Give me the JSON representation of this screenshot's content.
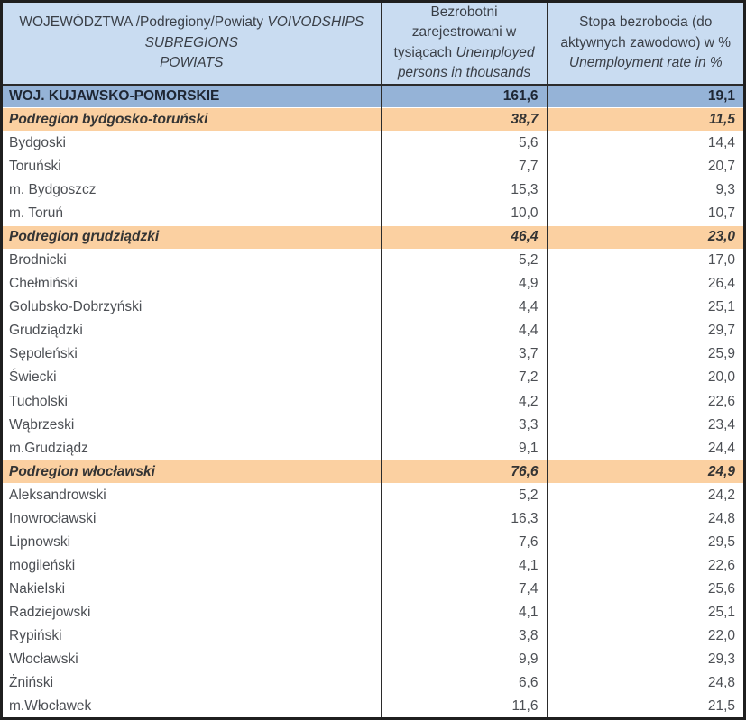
{
  "chart_data": {
    "type": "table",
    "title": "Unemployment by voivodship, subregion and powiat (Kujawsko-Pomorskie)",
    "columns": [
      "WOJEWÓDZTWA /Podregiony/Powiaty VOIVODSHIPS SUBREGIONS POWIATS",
      "Bezrobotni zarejestrowani w tysiącach Unemployed persons in thousands",
      "Stopa bezrobocia (do aktywnych zawodowo) w % Unemployment rate in %"
    ],
    "rows": [
      {
        "name": "WOJ. KUJAWSKO-POMORSKIE",
        "unemployed_thousands": "161,6",
        "rate_percent": "19,1",
        "level": "voivodship"
      },
      {
        "name": "Podregion bydgosko-toruński",
        "unemployed_thousands": "38,7",
        "rate_percent": "11,5",
        "level": "subregion"
      },
      {
        "name": "Bydgoski",
        "unemployed_thousands": "5,6",
        "rate_percent": "14,4",
        "level": "powiat"
      },
      {
        "name": "Toruński",
        "unemployed_thousands": "7,7",
        "rate_percent": "20,7",
        "level": "powiat"
      },
      {
        "name": "m. Bydgoszcz",
        "unemployed_thousands": "15,3",
        "rate_percent": "9,3",
        "level": "powiat"
      },
      {
        "name": "m. Toruń",
        "unemployed_thousands": "10,0",
        "rate_percent": "10,7",
        "level": "powiat"
      },
      {
        "name": "Podregion grudziądzki",
        "unemployed_thousands": "46,4",
        "rate_percent": "23,0",
        "level": "subregion"
      },
      {
        "name": "Brodnicki",
        "unemployed_thousands": "5,2",
        "rate_percent": "17,0",
        "level": "powiat"
      },
      {
        "name": "Chełmiński",
        "unemployed_thousands": "4,9",
        "rate_percent": "26,4",
        "level": "powiat"
      },
      {
        "name": "Golubsko-Dobrzyński",
        "unemployed_thousands": "4,4",
        "rate_percent": "25,1",
        "level": "powiat"
      },
      {
        "name": "Grudziądzki",
        "unemployed_thousands": "4,4",
        "rate_percent": "29,7",
        "level": "powiat"
      },
      {
        "name": "Sępoleński",
        "unemployed_thousands": "3,7",
        "rate_percent": "25,9",
        "level": "powiat"
      },
      {
        "name": "Świecki",
        "unemployed_thousands": "7,2",
        "rate_percent": "20,0",
        "level": "powiat"
      },
      {
        "name": "Tucholski",
        "unemployed_thousands": "4,2",
        "rate_percent": "22,6",
        "level": "powiat"
      },
      {
        "name": "Wąbrzeski",
        "unemployed_thousands": "3,3",
        "rate_percent": "23,4",
        "level": "powiat"
      },
      {
        "name": "m.Grudziądz",
        "unemployed_thousands": "9,1",
        "rate_percent": "24,4",
        "level": "powiat"
      },
      {
        "name": "Podregion włocławski",
        "unemployed_thousands": "76,6",
        "rate_percent": "24,9",
        "level": "subregion"
      },
      {
        "name": "Aleksandrowski",
        "unemployed_thousands": "5,2",
        "rate_percent": "24,2",
        "level": "powiat"
      },
      {
        "name": "Inowrocławski",
        "unemployed_thousands": "16,3",
        "rate_percent": "24,8",
        "level": "powiat"
      },
      {
        "name": "Lipnowski",
        "unemployed_thousands": "7,6",
        "rate_percent": "29,5",
        "level": "powiat"
      },
      {
        "name": "mogileński",
        "unemployed_thousands": "4,1",
        "rate_percent": "22,6",
        "level": "powiat"
      },
      {
        "name": "Nakielski",
        "unemployed_thousands": "7,4",
        "rate_percent": "25,6",
        "level": "powiat"
      },
      {
        "name": "Radziejowski",
        "unemployed_thousands": "4,1",
        "rate_percent": "25,1",
        "level": "powiat"
      },
      {
        "name": "Rypiński",
        "unemployed_thousands": "3,8",
        "rate_percent": "22,0",
        "level": "powiat"
      },
      {
        "name": "Włocławski",
        "unemployed_thousands": "9,9",
        "rate_percent": "29,3",
        "level": "powiat"
      },
      {
        "name": "Żniński",
        "unemployed_thousands": "6,6",
        "rate_percent": "24,8",
        "level": "powiat"
      },
      {
        "name": "m.Włocławek",
        "unemployed_thousands": "11,6",
        "rate_percent": "21,5",
        "level": "powiat"
      }
    ]
  },
  "header": {
    "col1": {
      "plain": "WOJEWÓDZTWA /Podregiony/Powiaty ",
      "italic_line1": "VOIVODSHIPS",
      "italic_line2": "SUBREGIONS",
      "italic_line3": "POWIATS"
    },
    "col2": {
      "plain": "Bezrobotni zarejestrowani  w tysiącach ",
      "italic": "Unemployed persons in thousands"
    },
    "col3": {
      "plain": "Stopa bezrobocia  (do aktywnych zawodowo) w % ",
      "italic": "Unemployment rate in  %"
    }
  },
  "colors": {
    "header_bg": "#c9dcf1",
    "voivodship_row_bg": "#95b3d7",
    "subregion_row_bg": "#fbd0a1",
    "powiat_row_bg": "#ffffff",
    "border_dark": "#2b2b2b"
  }
}
